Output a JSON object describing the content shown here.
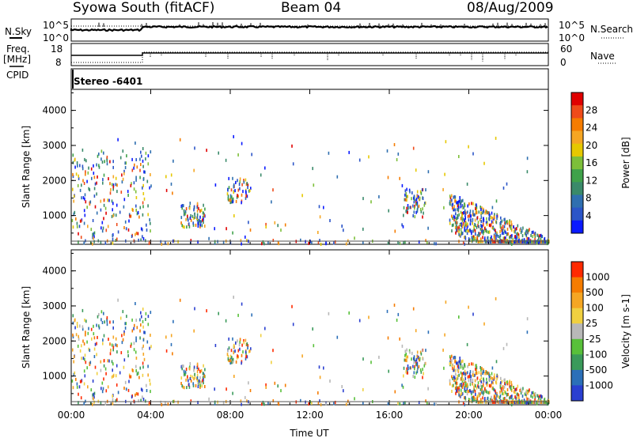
{
  "header": {
    "station": "Syowa South (fitACF)",
    "beam": "Beam 04",
    "date": "08/Aug/2009"
  },
  "panel_labels": {
    "nsky": "N.Sky",
    "freq": "Freq.",
    "mhz": "[MHz]",
    "cpid": "CPID",
    "nsearch": "N.Search",
    "nave": "Nave",
    "cpid_value": "Stereo -6401"
  },
  "colors": {
    "power_scale": [
      "#0a1aff",
      "#2b55c8",
      "#2f6fb0",
      "#3a8a6a",
      "#3fa24a",
      "#7dbf3a",
      "#e6c800",
      "#f5a623",
      "#f57c00",
      "#ef4b1a",
      "#e00000"
    ],
    "velocity_scale": [
      "#2a3fd0",
      "#2b6fb8",
      "#3a9a5a",
      "#58c03a",
      "#b8b8b8",
      "#f0d040",
      "#f5a623",
      "#f57c00",
      "#ff2a00"
    ]
  },
  "chart_data": [
    {
      "type": "line",
      "name": "N.Sky / N.Search",
      "y_ticks_left": [
        "10^5",
        "10^0"
      ],
      "y_ticks_right": [
        "10^5",
        "10^0"
      ],
      "y_label_left": "N.Sky",
      "y_label_right": "N.Search"
    },
    {
      "type": "line",
      "name": "Freq / Nave",
      "y_ticks_left": [
        "18",
        "8"
      ],
      "y_ticks_right": [
        "60",
        "0"
      ],
      "y_label_left": "Freq. [MHz]",
      "y_label_right": "Nave"
    },
    {
      "type": "heatmap",
      "name": "Power",
      "xlabel": "",
      "ylabel": "Slant Range [km]",
      "x_ticks": [
        "00:00",
        "04:00",
        "08:00",
        "12:00",
        "16:00",
        "20:00",
        "00:00"
      ],
      "y_ticks": [
        "1000",
        "2000",
        "3000",
        "4000"
      ],
      "ylim": [
        180,
        4600
      ],
      "colorbar_label": "Power [dB]",
      "colorbar_ticks": [
        "4",
        "8",
        "12",
        "16",
        "20",
        "24",
        "28"
      ]
    },
    {
      "type": "heatmap",
      "name": "Velocity",
      "xlabel": "Time UT",
      "ylabel": "Slant Range [km]",
      "x_ticks": [
        "00:00",
        "04:00",
        "08:00",
        "12:00",
        "16:00",
        "20:00",
        "00:00"
      ],
      "y_ticks": [
        "1000",
        "2000",
        "3000",
        "4000"
      ],
      "ylim": [
        180,
        4600
      ],
      "colorbar_label": "Velocity [m s-1]",
      "colorbar_ticks": [
        "1000",
        "500",
        "100",
        "25",
        "-25",
        "-100",
        "-500",
        "-1000"
      ]
    }
  ]
}
